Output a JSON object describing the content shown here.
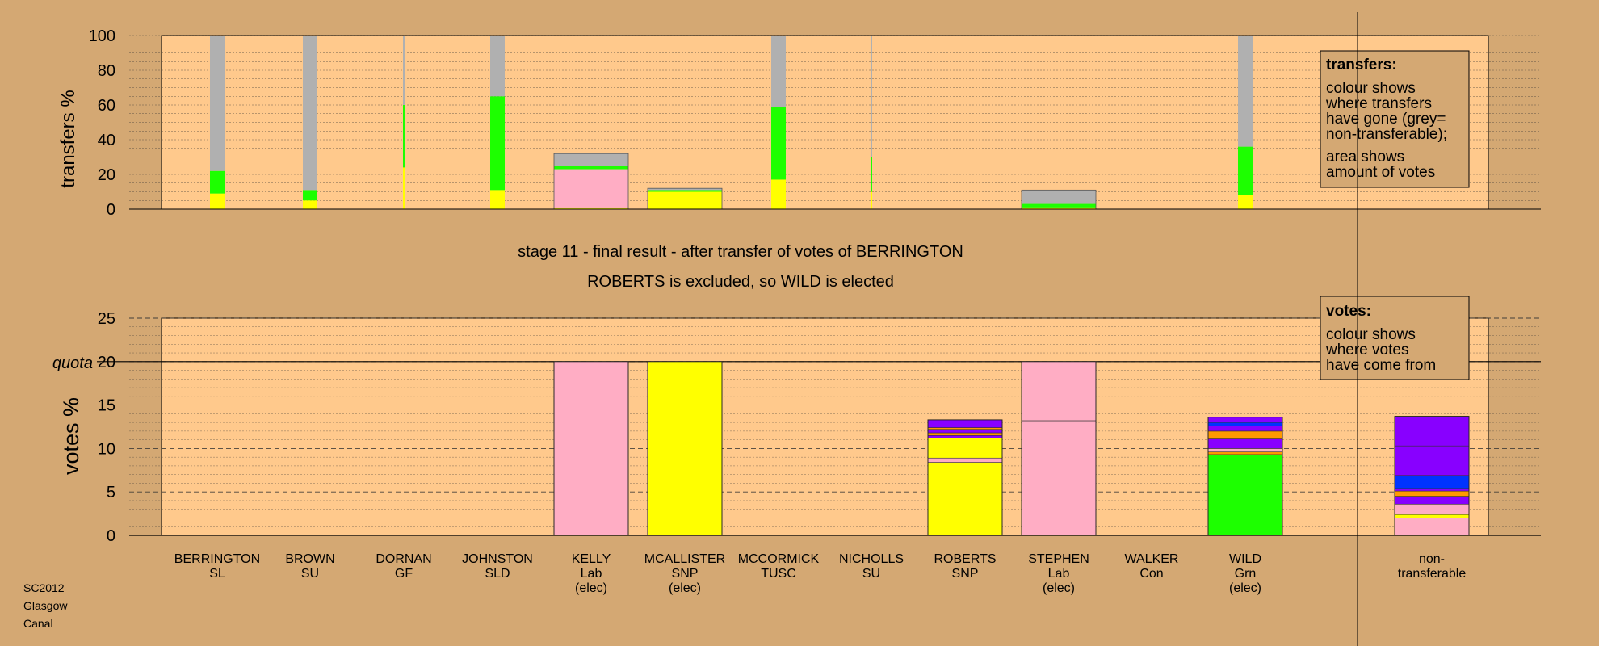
{
  "colors": {
    "background": "#d4a873",
    "plot_background": "#ffc98c",
    "nontransferable": "#b0b0b0",
    "pink": "#ffadc4",
    "yellow": "#ffff00",
    "green": "#1dff00",
    "purple": "#8800ff",
    "orange": "#ff9900",
    "blue": "#0033ff"
  },
  "stage_title": "stage 11 - final result - after transfer of votes of BERRINGTON",
  "stage_subtitle": "ROBERTS is excluded, so WILD is elected",
  "corner_label": [
    "SC2012",
    "Glasgow",
    "Canal"
  ],
  "transfers_legend": {
    "title": "transfers:",
    "lines": [
      "colour shows",
      "where transfers",
      "have gone (grey=",
      "non-transferable);",
      "area shows",
      "amount of votes"
    ]
  },
  "votes_legend": {
    "title": "votes:",
    "lines": [
      "colour shows",
      "where votes",
      "have come from"
    ]
  },
  "chart_data": [
    {
      "type": "bar",
      "name": "transfers",
      "ylabel": "transfers %",
      "ylim": [
        0,
        100
      ],
      "yticks": [
        0,
        20,
        40,
        60,
        80,
        100
      ],
      "grid": true,
      "legend_position": "top-right",
      "categories": [
        "BERRINGTON",
        "BROWN",
        "DORNAN",
        "JOHNSTON",
        "KELLY",
        "MCALLISTER",
        "MCCORMICK",
        "NICHOLLS",
        "ROBERTS",
        "STEPHEN",
        "WALKER",
        "WILD"
      ],
      "bars": [
        {
          "candidate": "BERRINGTON",
          "width": "narrow",
          "segments": [
            {
              "color": "yellow",
              "value": 9
            },
            {
              "color": "green",
              "value": 13
            },
            {
              "color": "nontransferable",
              "value": 78
            }
          ]
        },
        {
          "candidate": "BROWN",
          "width": "narrow",
          "segments": [
            {
              "color": "yellow",
              "value": 5
            },
            {
              "color": "green",
              "value": 6
            },
            {
              "color": "nontransferable",
              "value": 89
            }
          ]
        },
        {
          "candidate": "DORNAN",
          "width": "thin",
          "segments": [
            {
              "color": "yellow",
              "value": 24
            },
            {
              "color": "green",
              "value": 36
            },
            {
              "color": "nontransferable",
              "value": 40
            }
          ]
        },
        {
          "candidate": "JOHNSTON",
          "width": "narrow",
          "segments": [
            {
              "color": "yellow",
              "value": 11
            },
            {
              "color": "green",
              "value": 54
            },
            {
              "color": "nontransferable",
              "value": 35
            }
          ]
        },
        {
          "candidate": "KELLY",
          "width": "wide",
          "segments": [
            {
              "color": "yellow",
              "value": 1
            },
            {
              "color": "pink",
              "value": 22
            },
            {
              "color": "green",
              "value": 2
            },
            {
              "color": "nontransferable",
              "value": 7
            }
          ]
        },
        {
          "candidate": "MCALLISTER",
          "width": "wide",
          "segments": [
            {
              "color": "yellow",
              "value": 10
            },
            {
              "color": "green",
              "value": 1
            },
            {
              "color": "nontransferable",
              "value": 1
            }
          ]
        },
        {
          "candidate": "MCCORMICK",
          "width": "narrow",
          "segments": [
            {
              "color": "yellow",
              "value": 17
            },
            {
              "color": "green",
              "value": 42
            },
            {
              "color": "nontransferable",
              "value": 41
            }
          ]
        },
        {
          "candidate": "NICHOLLS",
          "width": "thin",
          "segments": [
            {
              "color": "yellow",
              "value": 10
            },
            {
              "color": "green",
              "value": 20
            },
            {
              "color": "nontransferable",
              "value": 70
            }
          ]
        },
        {
          "candidate": "STEPHEN",
          "width": "wide",
          "segments": [
            {
              "color": "yellow",
              "value": 1
            },
            {
              "color": "green",
              "value": 2
            },
            {
              "color": "nontransferable",
              "value": 8
            }
          ]
        },
        {
          "candidate": "WILD",
          "width": "narrow",
          "segments": [
            {
              "color": "yellow",
              "value": 8
            },
            {
              "color": "green",
              "value": 28
            },
            {
              "color": "nontransferable",
              "value": 64
            }
          ]
        }
      ]
    },
    {
      "type": "bar",
      "name": "votes",
      "ylabel": "votes %",
      "ylim": [
        0,
        25
      ],
      "yticks": [
        0,
        5,
        10,
        15,
        20,
        25
      ],
      "quota": 20,
      "quota_label": "quota",
      "grid": true,
      "legend_position": "top-right",
      "categories": [
        {
          "name": "BERRINGTON",
          "party": "SL",
          "note": ""
        },
        {
          "name": "BROWN",
          "party": "SU",
          "note": ""
        },
        {
          "name": "DORNAN",
          "party": "GF",
          "note": ""
        },
        {
          "name": "JOHNSTON",
          "party": "SLD",
          "note": ""
        },
        {
          "name": "KELLY",
          "party": "Lab",
          "note": "(elec)"
        },
        {
          "name": "MCALLISTER",
          "party": "SNP",
          "note": "(elec)"
        },
        {
          "name": "MCCORMICK",
          "party": "TUSC",
          "note": ""
        },
        {
          "name": "NICHOLLS",
          "party": "SU",
          "note": ""
        },
        {
          "name": "ROBERTS",
          "party": "SNP",
          "note": ""
        },
        {
          "name": "STEPHEN",
          "party": "Lab",
          "note": "(elec)"
        },
        {
          "name": "WALKER",
          "party": "Con",
          "note": ""
        },
        {
          "name": "WILD",
          "party": "Grn",
          "note": "(elec)"
        },
        {
          "name": "non-",
          "party": "transferable",
          "note": ""
        }
      ],
      "bars": [
        {
          "candidate": "KELLY",
          "segments": [
            {
              "color": "pink",
              "value": 20
            }
          ]
        },
        {
          "candidate": "MCALLISTER",
          "segments": [
            {
              "color": "yellow",
              "value": 20
            }
          ]
        },
        {
          "candidate": "ROBERTS",
          "segments": [
            {
              "color": "yellow",
              "value": 8.4
            },
            {
              "color": "pink",
              "value": 0.5
            },
            {
              "color": "yellow",
              "value": 2.3
            },
            {
              "color": "purple",
              "value": 0.3
            },
            {
              "color": "orange",
              "value": 0.3
            },
            {
              "color": "purple",
              "value": 0.4
            },
            {
              "color": "orange",
              "value": 0.2
            },
            {
              "color": "purple",
              "value": 0.9
            }
          ]
        },
        {
          "candidate": "STEPHEN",
          "segments": [
            {
              "color": "pink",
              "value": 13.2
            },
            {
              "color": "pink",
              "value": 6.8
            }
          ]
        },
        {
          "candidate": "WILD",
          "segments": [
            {
              "color": "green",
              "value": 9.3
            },
            {
              "color": "orange",
              "value": 0.3
            },
            {
              "color": "pink",
              "value": 0.4
            },
            {
              "color": "purple",
              "value": 1.1
            },
            {
              "color": "orange",
              "value": 0.9
            },
            {
              "color": "purple",
              "value": 0.6
            },
            {
              "color": "blue",
              "value": 0.4
            },
            {
              "color": "purple",
              "value": 0.6
            }
          ]
        },
        {
          "candidate": "non-transferable",
          "segments": [
            {
              "color": "pink",
              "value": 2
            },
            {
              "color": "yellow",
              "value": 0.4
            },
            {
              "color": "pink",
              "value": 1.2
            },
            {
              "color": "purple",
              "value": 0.9
            },
            {
              "color": "orange",
              "value": 0.6
            },
            {
              "color": "purple",
              "value": 0.3
            },
            {
              "color": "blue",
              "value": 1.5
            },
            {
              "color": "purple",
              "value": 3.4
            },
            {
              "color": "purple",
              "value": 3.4
            }
          ]
        }
      ]
    }
  ]
}
